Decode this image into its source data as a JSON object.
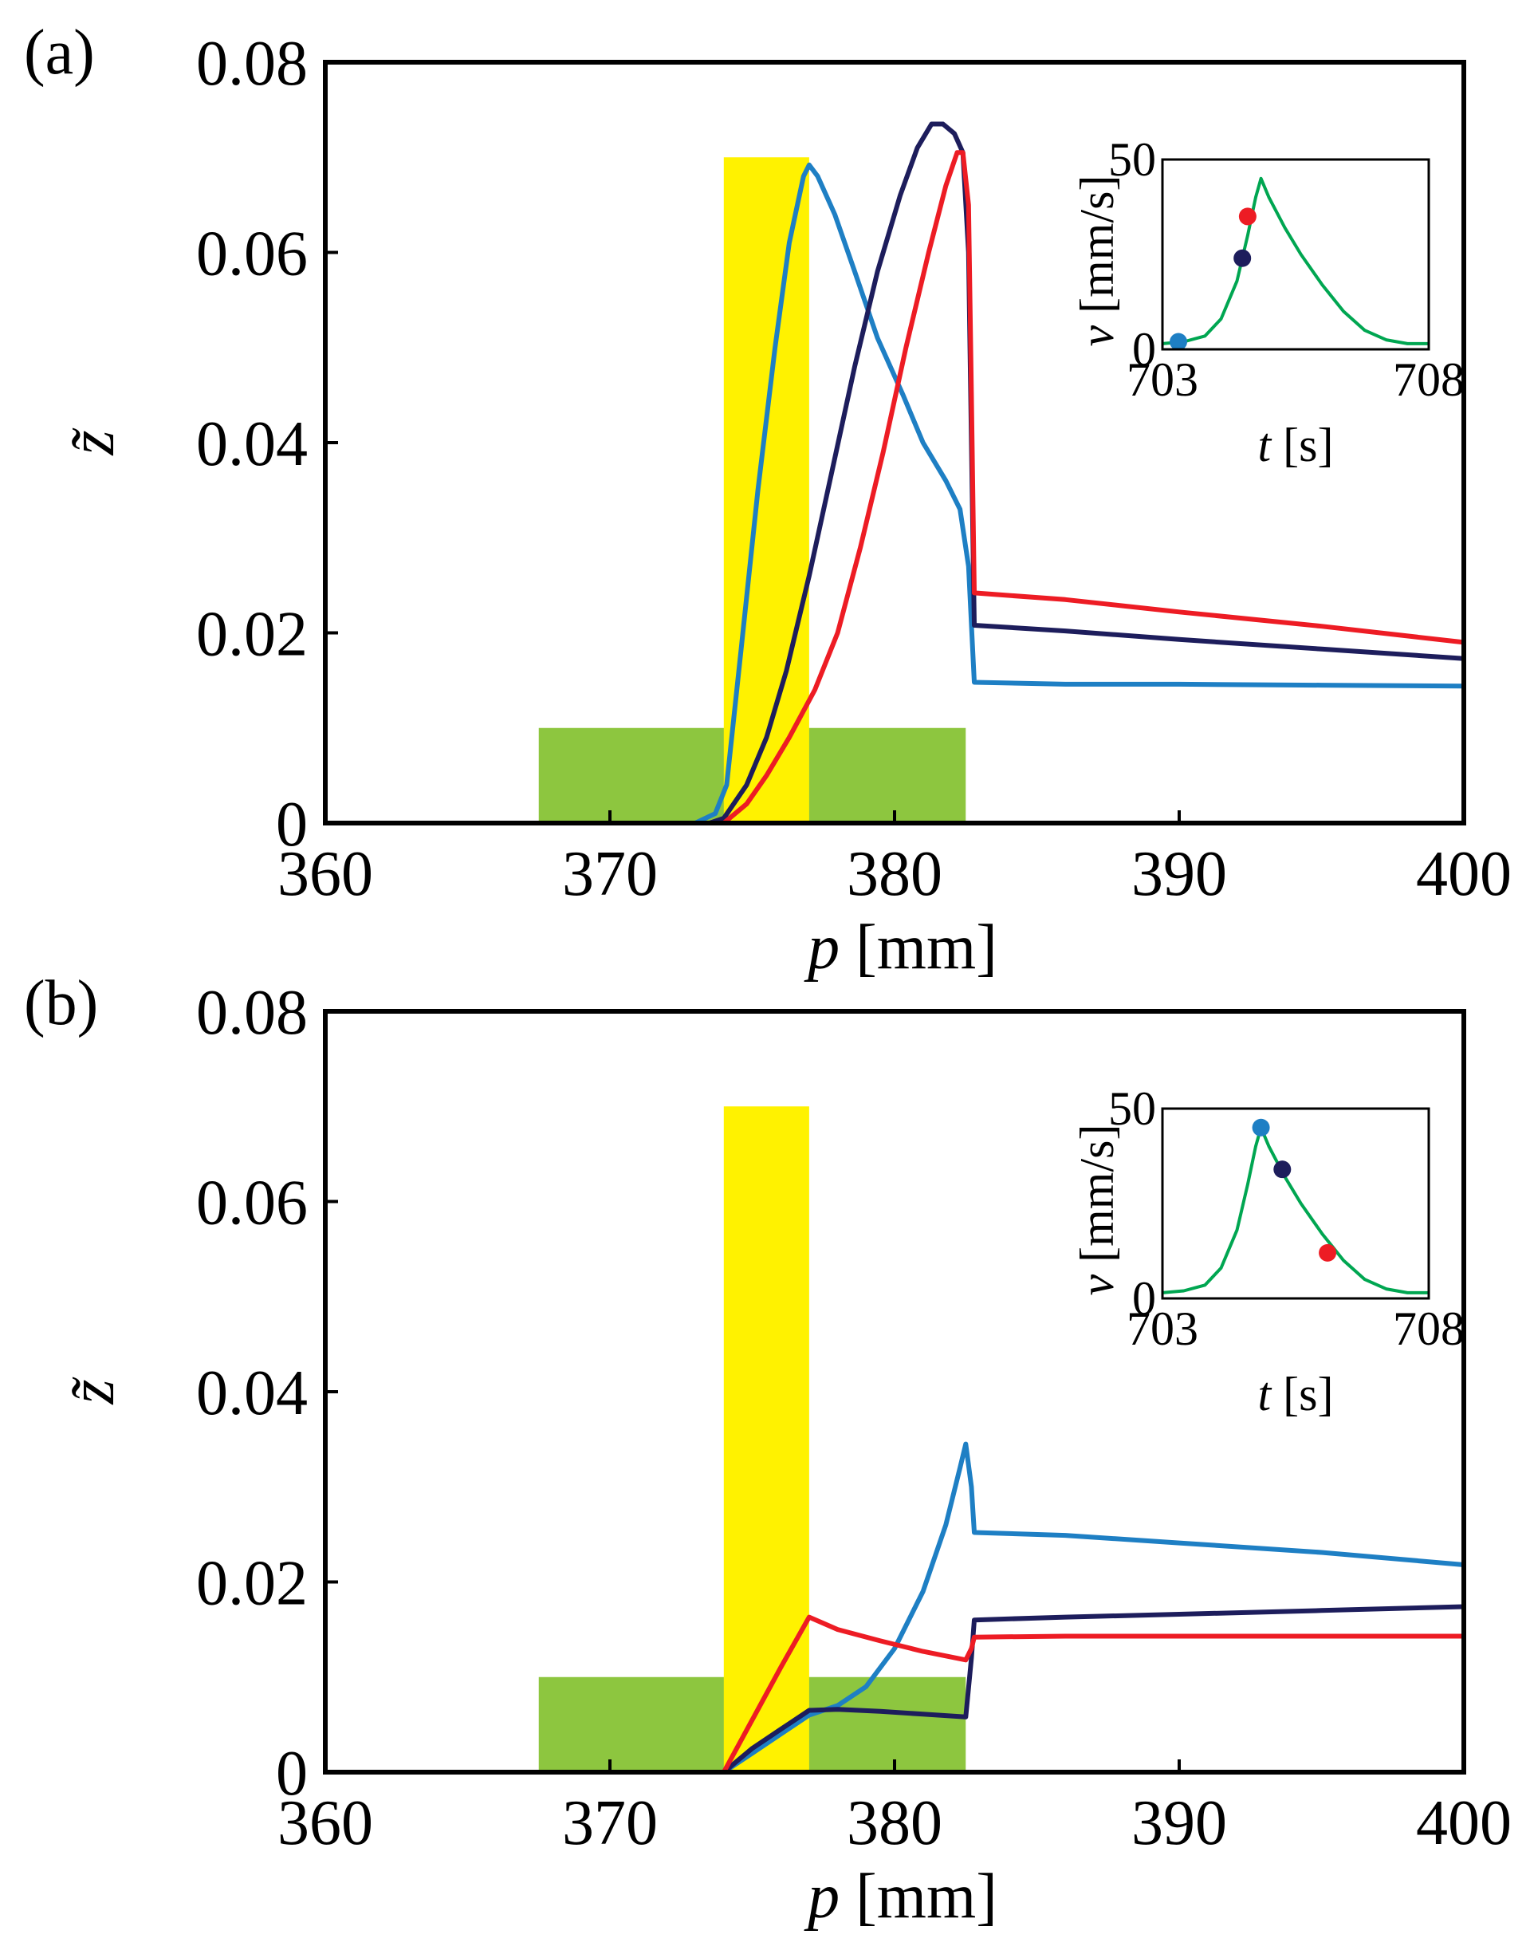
{
  "chart_data": [
    {
      "type": "line",
      "panel_label": "(a)",
      "xlabel": {
        "var": "p",
        "unit": " [mm]"
      },
      "ylabel": "z̃",
      "xlim": [
        360,
        400
      ],
      "ylim": [
        0,
        0.08
      ],
      "xticks": [
        {
          "value": 360,
          "label": "360"
        },
        {
          "value": 370,
          "label": "370"
        },
        {
          "value": 380,
          "label": "380"
        },
        {
          "value": 390,
          "label": "390"
        },
        {
          "value": 400,
          "label": "400"
        }
      ],
      "yticks": [
        {
          "value": 0,
          "label": "0"
        },
        {
          "value": 0.02,
          "label": "0.02"
        },
        {
          "value": 0.04,
          "label": "0.04"
        },
        {
          "value": 0.06,
          "label": "0.06"
        },
        {
          "value": 0.08,
          "label": "0.08"
        }
      ],
      "regions": [
        {
          "name": "green-region",
          "color": "#8dc63f",
          "x": [
            367.5,
            382.5
          ],
          "y": [
            0,
            0.01
          ]
        },
        {
          "name": "yellow-region",
          "color": "#fff200",
          "x": [
            374,
            377
          ],
          "y": [
            0,
            0.07
          ]
        }
      ],
      "series": [
        {
          "name": "light-blue",
          "color": "#1e7fc4",
          "points": [
            [
              360,
              0
            ],
            [
              373,
              0
            ],
            [
              373.7,
              0.001
            ],
            [
              374.1,
              0.004
            ],
            [
              374.6,
              0.018
            ],
            [
              375.2,
              0.035
            ],
            [
              375.8,
              0.05
            ],
            [
              376.3,
              0.061
            ],
            [
              376.8,
              0.068
            ],
            [
              377.0,
              0.0692
            ],
            [
              377.3,
              0.068
            ],
            [
              377.9,
              0.064
            ],
            [
              378.6,
              0.058
            ],
            [
              379.4,
              0.051
            ],
            [
              380.3,
              0.045
            ],
            [
              381.0,
              0.04
            ],
            [
              381.8,
              0.036
            ],
            [
              382.3,
              0.033
            ],
            [
              382.6,
              0.027
            ],
            [
              382.8,
              0.0148
            ],
            [
              386,
              0.0146
            ],
            [
              390,
              0.0146
            ],
            [
              395,
              0.0145
            ],
            [
              400,
              0.0144
            ]
          ]
        },
        {
          "name": "dark-navy",
          "color": "#1d1d5c",
          "points": [
            [
              360,
              0
            ],
            [
              373.5,
              0
            ],
            [
              374.0,
              0.0005
            ],
            [
              374.8,
              0.004
            ],
            [
              375.5,
              0.009
            ],
            [
              376.2,
              0.016
            ],
            [
              377.0,
              0.026
            ],
            [
              377.8,
              0.037
            ],
            [
              378.6,
              0.048
            ],
            [
              379.4,
              0.058
            ],
            [
              380.2,
              0.066
            ],
            [
              380.8,
              0.071
            ],
            [
              381.3,
              0.0735
            ],
            [
              381.7,
              0.0735
            ],
            [
              382.1,
              0.0725
            ],
            [
              382.4,
              0.0705
            ],
            [
              382.6,
              0.06
            ],
            [
              382.7,
              0.04
            ],
            [
              382.8,
              0.0208
            ],
            [
              386,
              0.0202
            ],
            [
              390,
              0.0193
            ],
            [
              395,
              0.0183
            ],
            [
              400,
              0.0173
            ]
          ]
        },
        {
          "name": "red",
          "color": "#ed1c24",
          "points": [
            [
              360,
              0
            ],
            [
              374.0,
              0
            ],
            [
              374.8,
              0.002
            ],
            [
              375.5,
              0.005
            ],
            [
              376.3,
              0.009
            ],
            [
              377.2,
              0.014
            ],
            [
              378.0,
              0.02
            ],
            [
              378.8,
              0.029
            ],
            [
              379.6,
              0.039
            ],
            [
              380.4,
              0.05
            ],
            [
              381.2,
              0.06
            ],
            [
              381.8,
              0.067
            ],
            [
              382.2,
              0.0705
            ],
            [
              382.4,
              0.0705
            ],
            [
              382.6,
              0.065
            ],
            [
              382.7,
              0.045
            ],
            [
              382.8,
              0.0242
            ],
            [
              386,
              0.0235
            ],
            [
              390,
              0.0222
            ],
            [
              395,
              0.0207
            ],
            [
              400,
              0.019
            ]
          ]
        }
      ],
      "inset": {
        "xlabel": {
          "var": "t",
          "unit": " [s]"
        },
        "ylabel": {
          "var": "v",
          "unit": " [mm/s]"
        },
        "xlim": [
          703,
          708
        ],
        "ylim": [
          0,
          50
        ],
        "xticks": [
          {
            "value": 703,
            "label": "703"
          },
          {
            "value": 708,
            "label": "708"
          }
        ],
        "yticks": [
          {
            "value": 0,
            "label": "0"
          },
          {
            "value": 50,
            "label": "50"
          }
        ],
        "curve_color": "#00a651",
        "curve": [
          [
            703,
            1.5
          ],
          [
            703.4,
            2
          ],
          [
            703.8,
            3.5
          ],
          [
            704.1,
            8
          ],
          [
            704.4,
            18
          ],
          [
            704.6,
            30
          ],
          [
            704.75,
            40
          ],
          [
            704.85,
            45
          ],
          [
            705.0,
            40
          ],
          [
            705.3,
            32
          ],
          [
            705.6,
            25
          ],
          [
            706.0,
            17
          ],
          [
            706.4,
            10
          ],
          [
            706.8,
            5
          ],
          [
            707.2,
            2.5
          ],
          [
            707.6,
            1.5
          ],
          [
            708,
            1.5
          ]
        ],
        "markers": [
          {
            "name": "light-blue-marker",
            "color": "#1e7fc4",
            "t": 703.3,
            "v": 2
          },
          {
            "name": "navy-marker",
            "color": "#1d1d5c",
            "t": 704.5,
            "v": 24
          },
          {
            "name": "red-marker",
            "color": "#ed1c24",
            "t": 704.6,
            "v": 35
          }
        ]
      }
    },
    {
      "type": "line",
      "panel_label": "(b)",
      "xlabel": {
        "var": "p",
        "unit": " [mm]"
      },
      "ylabel": "z̃",
      "xlim": [
        360,
        400
      ],
      "ylim": [
        0,
        0.08
      ],
      "xticks": [
        {
          "value": 360,
          "label": "360"
        },
        {
          "value": 370,
          "label": "370"
        },
        {
          "value": 380,
          "label": "380"
        },
        {
          "value": 390,
          "label": "390"
        },
        {
          "value": 400,
          "label": "400"
        }
      ],
      "yticks": [
        {
          "value": 0,
          "label": "0"
        },
        {
          "value": 0.02,
          "label": "0.02"
        },
        {
          "value": 0.04,
          "label": "0.04"
        },
        {
          "value": 0.06,
          "label": "0.06"
        },
        {
          "value": 0.08,
          "label": "0.08"
        }
      ],
      "regions": [
        {
          "name": "green-region",
          "color": "#8dc63f",
          "x": [
            367.5,
            382.5
          ],
          "y": [
            0,
            0.01
          ]
        },
        {
          "name": "yellow-region",
          "color": "#fff200",
          "x": [
            374,
            377
          ],
          "y": [
            0,
            0.07
          ]
        }
      ],
      "series": [
        {
          "name": "light-blue",
          "color": "#1e7fc4",
          "points": [
            [
              360,
              0
            ],
            [
              374,
              0
            ],
            [
              375.0,
              0.002
            ],
            [
              376.0,
              0.004
            ],
            [
              377.0,
              0.006
            ],
            [
              378.0,
              0.007
            ],
            [
              379.0,
              0.009
            ],
            [
              380.0,
              0.013
            ],
            [
              381.0,
              0.019
            ],
            [
              381.8,
              0.026
            ],
            [
              382.3,
              0.032
            ],
            [
              382.5,
              0.0345
            ],
            [
              382.7,
              0.03
            ],
            [
              382.8,
              0.0252
            ],
            [
              386,
              0.0249
            ],
            [
              390,
              0.0241
            ],
            [
              395,
              0.0231
            ],
            [
              400,
              0.0218
            ]
          ]
        },
        {
          "name": "dark-navy",
          "color": "#1d1d5c",
          "points": [
            [
              360,
              0
            ],
            [
              374,
              0
            ],
            [
              375.0,
              0.0025
            ],
            [
              376.0,
              0.0045
            ],
            [
              377.0,
              0.0065
            ],
            [
              378.0,
              0.0066
            ],
            [
              379.5,
              0.0064
            ],
            [
              381.0,
              0.0061
            ],
            [
              382.5,
              0.0058
            ],
            [
              382.7,
              0.012
            ],
            [
              382.8,
              0.016
            ],
            [
              386,
              0.0163
            ],
            [
              390,
              0.0166
            ],
            [
              395,
              0.017
            ],
            [
              400,
              0.0174
            ]
          ]
        },
        {
          "name": "red",
          "color": "#ed1c24",
          "points": [
            [
              360,
              0
            ],
            [
              374,
              0
            ],
            [
              375.0,
              0.0055
            ],
            [
              376.0,
              0.011
            ],
            [
              377.0,
              0.0163
            ],
            [
              378.0,
              0.015
            ],
            [
              379.5,
              0.0138
            ],
            [
              381.0,
              0.0127
            ],
            [
              382.5,
              0.0118
            ],
            [
              382.7,
              0.013
            ],
            [
              382.8,
              0.0142
            ],
            [
              386,
              0.0143
            ],
            [
              390,
              0.0143
            ],
            [
              395,
              0.0143
            ],
            [
              400,
              0.0143
            ]
          ]
        }
      ],
      "inset": {
        "xlabel": {
          "var": "t",
          "unit": " [s]"
        },
        "ylabel": {
          "var": "v",
          "unit": " [mm/s]"
        },
        "xlim": [
          703,
          708
        ],
        "ylim": [
          0,
          50
        ],
        "xticks": [
          {
            "value": 703,
            "label": "703"
          },
          {
            "value": 708,
            "label": "708"
          }
        ],
        "yticks": [
          {
            "value": 0,
            "label": "0"
          },
          {
            "value": 50,
            "label": "50"
          }
        ],
        "curve_color": "#00a651",
        "curve": [
          [
            703,
            1.5
          ],
          [
            703.4,
            2
          ],
          [
            703.8,
            3.5
          ],
          [
            704.1,
            8
          ],
          [
            704.4,
            18
          ],
          [
            704.6,
            30
          ],
          [
            704.75,
            40
          ],
          [
            704.85,
            45
          ],
          [
            705.0,
            40
          ],
          [
            705.3,
            32
          ],
          [
            705.6,
            25
          ],
          [
            706.0,
            17
          ],
          [
            706.4,
            10
          ],
          [
            706.8,
            5
          ],
          [
            707.2,
            2.5
          ],
          [
            707.6,
            1.5
          ],
          [
            708,
            1.5
          ]
        ],
        "markers": [
          {
            "name": "light-blue-marker",
            "color": "#1e7fc4",
            "t": 704.85,
            "v": 45
          },
          {
            "name": "navy-marker",
            "color": "#1d1d5c",
            "t": 705.25,
            "v": 34
          },
          {
            "name": "red-marker",
            "color": "#ed1c24",
            "t": 706.1,
            "v": 12
          }
        ]
      }
    }
  ]
}
